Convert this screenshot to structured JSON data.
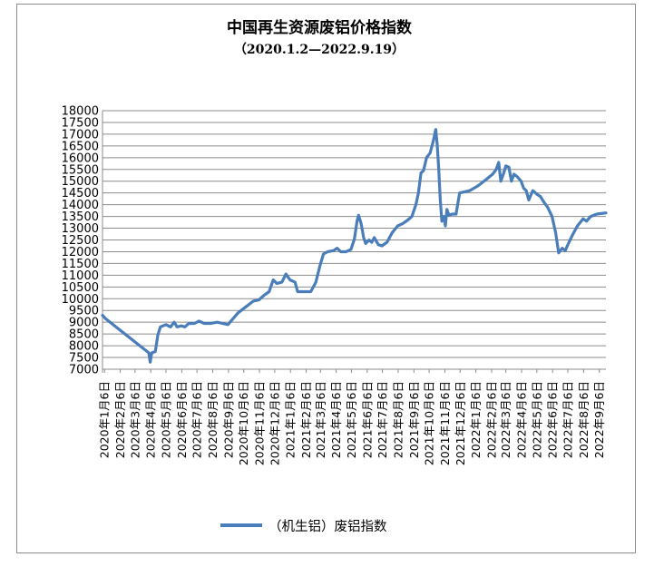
{
  "chart_data": {
    "type": "line",
    "title": "中国再生资源废铝价格指数",
    "subtitle": "（2020.1.2—2022.9.19）",
    "xlabel": "",
    "ylabel": "",
    "ylim": [
      7000,
      18000
    ],
    "y_ticks": [
      7000,
      7500,
      8000,
      8500,
      9000,
      9500,
      10000,
      10500,
      11000,
      11500,
      12000,
      12500,
      13000,
      13500,
      14000,
      14500,
      15000,
      15500,
      16000,
      16500,
      17000,
      17500,
      18000
    ],
    "x_tick_labels": [
      "2020年1月6日",
      "2020年2月6日",
      "2020年3月6日",
      "2020年4月6日",
      "2020年5月6日",
      "2020年6月6日",
      "2020年7月6日",
      "2020年8月6日",
      "2020年9月6日",
      "2020年10月6日",
      "2020年11月6日",
      "2020年12月6日",
      "2021年1月6日",
      "2021年2月6日",
      "2021年3月6日",
      "2021年4月6日",
      "2021年5月6日",
      "2021年6月6日",
      "2021年7月6日",
      "2021年8月6日",
      "2021年9月6日",
      "2021年10月6日",
      "2021年11月6日",
      "2021年12月6日",
      "2022年1月6日",
      "2022年2月6日",
      "2022年3月6日",
      "2022年4月6日",
      "2022年5月6日",
      "2022年6月6日",
      "2022年7月6日",
      "2022年8月6日",
      "2022年9月6日"
    ],
    "grid": true,
    "legend_position": "bottom",
    "line_color": "#4a7ebb",
    "series": [
      {
        "name": "（机生铝）废铝指数",
        "points": [
          [
            "2020-01-02",
            9300
          ],
          [
            "2020-01-08",
            9150
          ],
          [
            "2020-04-02",
            7700
          ],
          [
            "2020-04-05",
            7300
          ],
          [
            "2020-04-08",
            7700
          ],
          [
            "2020-04-15",
            7750
          ],
          [
            "2020-04-20",
            8450
          ],
          [
            "2020-04-25",
            8800
          ],
          [
            "2020-05-06",
            8900
          ],
          [
            "2020-05-15",
            8800
          ],
          [
            "2020-05-22",
            9000
          ],
          [
            "2020-05-28",
            8800
          ],
          [
            "2020-06-05",
            8850
          ],
          [
            "2020-06-12",
            8800
          ],
          [
            "2020-06-20",
            8950
          ],
          [
            "2020-07-01",
            8950
          ],
          [
            "2020-07-10",
            9050
          ],
          [
            "2020-07-20",
            8950
          ],
          [
            "2020-08-01",
            8950
          ],
          [
            "2020-08-15",
            9000
          ],
          [
            "2020-08-25",
            8950
          ],
          [
            "2020-09-05",
            8900
          ],
          [
            "2020-09-15",
            9150
          ],
          [
            "2020-09-25",
            9400
          ],
          [
            "2020-10-10",
            9650
          ],
          [
            "2020-10-25",
            9900
          ],
          [
            "2020-11-05",
            9950
          ],
          [
            "2020-11-15",
            10150
          ],
          [
            "2020-11-25",
            10300
          ],
          [
            "2020-12-03",
            10800
          ],
          [
            "2020-12-10",
            10650
          ],
          [
            "2020-12-20",
            10700
          ],
          [
            "2020-12-28",
            11050
          ],
          [
            "2021-01-05",
            10800
          ],
          [
            "2021-01-15",
            10700
          ],
          [
            "2021-01-20",
            10300
          ],
          [
            "2021-01-30",
            10300
          ],
          [
            "2021-02-15",
            10300
          ],
          [
            "2021-02-25",
            10700
          ],
          [
            "2021-03-05",
            11400
          ],
          [
            "2021-03-12",
            11900
          ],
          [
            "2021-03-20",
            12000
          ],
          [
            "2021-04-01",
            12050
          ],
          [
            "2021-04-08",
            12150
          ],
          [
            "2021-04-15",
            12000
          ],
          [
            "2021-04-25",
            12000
          ],
          [
            "2021-05-05",
            12100
          ],
          [
            "2021-05-12",
            12550
          ],
          [
            "2021-05-17",
            13300
          ],
          [
            "2021-05-20",
            13550
          ],
          [
            "2021-05-25",
            13200
          ],
          [
            "2021-05-30",
            12600
          ],
          [
            "2021-06-03",
            12350
          ],
          [
            "2021-06-10",
            12500
          ],
          [
            "2021-06-15",
            12400
          ],
          [
            "2021-06-20",
            12600
          ],
          [
            "2021-06-28",
            12300
          ],
          [
            "2021-07-05",
            12250
          ],
          [
            "2021-07-15",
            12400
          ],
          [
            "2021-07-25",
            12800
          ],
          [
            "2021-08-05",
            13100
          ],
          [
            "2021-08-15",
            13200
          ],
          [
            "2021-08-25",
            13350
          ],
          [
            "2021-09-02",
            13500
          ],
          [
            "2021-09-10",
            14000
          ],
          [
            "2021-09-15",
            14500
          ],
          [
            "2021-09-20",
            15350
          ],
          [
            "2021-09-25",
            15450
          ],
          [
            "2021-10-01",
            16000
          ],
          [
            "2021-10-08",
            16200
          ],
          [
            "2021-10-14",
            16700
          ],
          [
            "2021-10-19",
            17200
          ],
          [
            "2021-10-22",
            16500
          ],
          [
            "2021-10-25",
            15500
          ],
          [
            "2021-10-28",
            14200
          ],
          [
            "2021-10-31",
            13300
          ],
          [
            "2021-11-04",
            13500
          ],
          [
            "2021-11-07",
            13100
          ],
          [
            "2021-11-10",
            13800
          ],
          [
            "2021-11-14",
            13550
          ],
          [
            "2021-11-20",
            13600
          ],
          [
            "2021-11-28",
            13600
          ],
          [
            "2021-12-05",
            14500
          ],
          [
            "2021-12-15",
            14550
          ],
          [
            "2021-12-25",
            14600
          ],
          [
            "2022-01-10",
            14800
          ],
          [
            "2022-01-25",
            15050
          ],
          [
            "2022-02-08",
            15300
          ],
          [
            "2022-02-15",
            15500
          ],
          [
            "2022-02-20",
            15800
          ],
          [
            "2022-02-24",
            15000
          ],
          [
            "2022-03-01",
            15300
          ],
          [
            "2022-03-06",
            15650
          ],
          [
            "2022-03-12",
            15600
          ],
          [
            "2022-03-17",
            15000
          ],
          [
            "2022-03-22",
            15300
          ],
          [
            "2022-03-28",
            15200
          ],
          [
            "2022-04-05",
            15000
          ],
          [
            "2022-04-10",
            14700
          ],
          [
            "2022-04-15",
            14600
          ],
          [
            "2022-04-20",
            14200
          ],
          [
            "2022-04-28",
            14600
          ],
          [
            "2022-05-06",
            14450
          ],
          [
            "2022-05-13",
            14350
          ],
          [
            "2022-05-20",
            14100
          ],
          [
            "2022-05-27",
            13900
          ],
          [
            "2022-06-05",
            13500
          ],
          [
            "2022-06-12",
            12800
          ],
          [
            "2022-06-18",
            11950
          ],
          [
            "2022-06-25",
            12150
          ],
          [
            "2022-07-01",
            12050
          ],
          [
            "2022-07-06",
            12300
          ],
          [
            "2022-07-15",
            12700
          ],
          [
            "2022-07-25",
            13100
          ],
          [
            "2022-08-05",
            13400
          ],
          [
            "2022-08-12",
            13300
          ],
          [
            "2022-08-20",
            13500
          ],
          [
            "2022-09-01",
            13600
          ],
          [
            "2022-09-19",
            13650
          ]
        ]
      }
    ]
  }
}
